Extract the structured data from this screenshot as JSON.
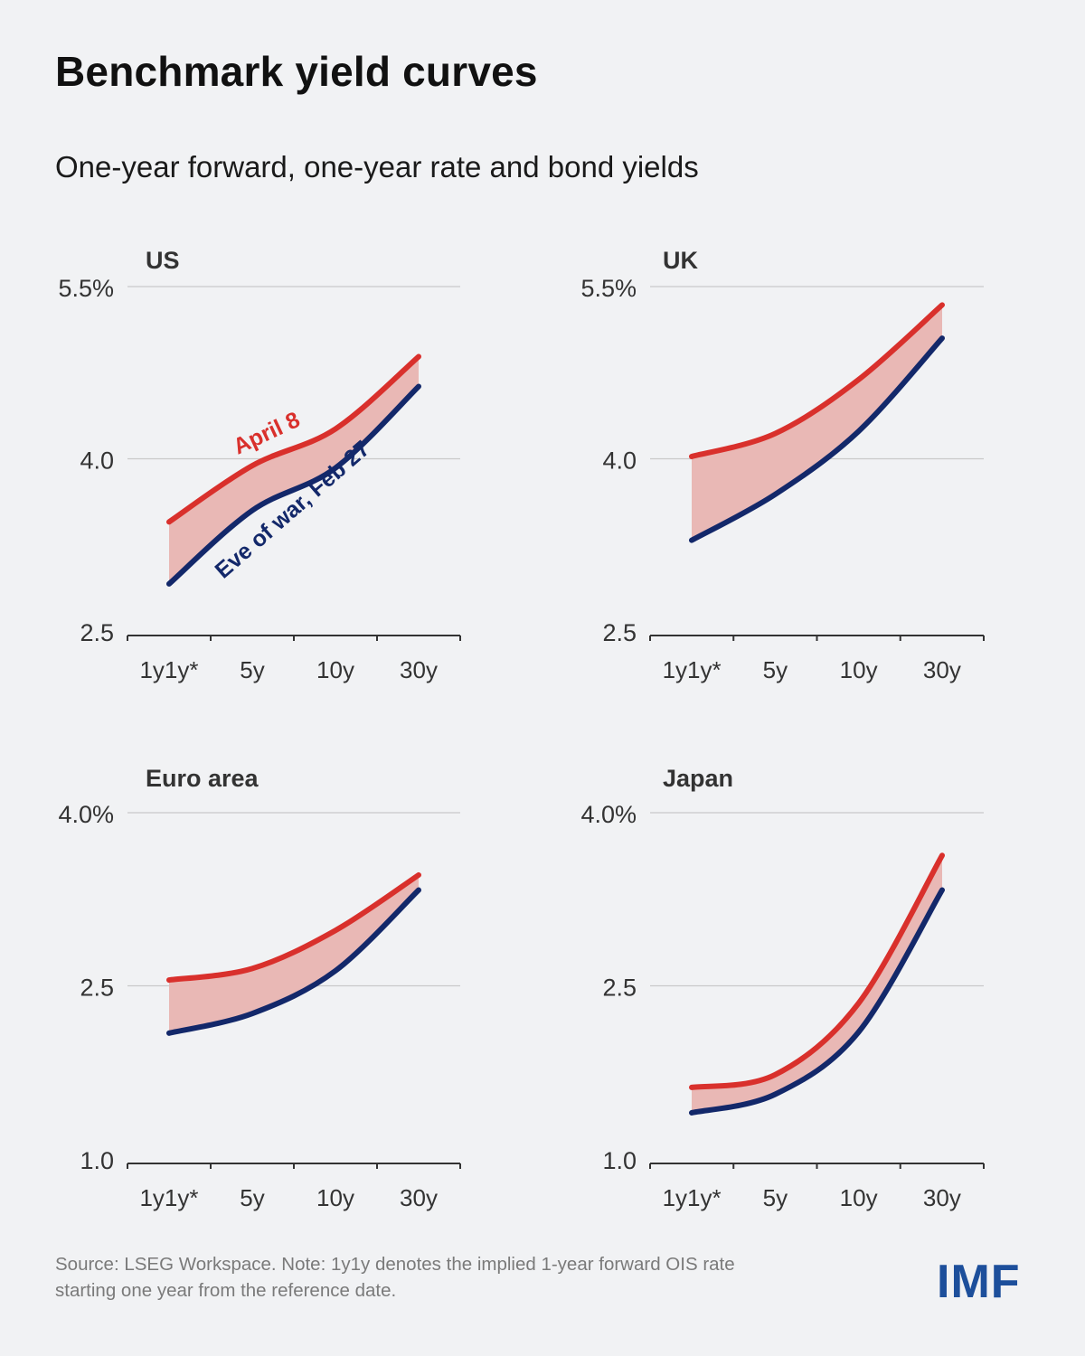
{
  "title": "Benchmark yield curves",
  "subtitle": "One-year forward, one-year rate and bond yields",
  "footer": {
    "source_line1": "Source: LSEG Workspace. Note: 1y1y denotes the implied 1-year forward OIS rate",
    "source_line2": "starting one year from the reference date.",
    "logo": "IMF"
  },
  "colors": {
    "april8": "#d9302c",
    "feb27": "#13286a",
    "band": "#e9b8b5",
    "grid": "#c9c9c9",
    "background": "#f1f2f4"
  },
  "chart_data": [
    {
      "type": "line",
      "title": "US",
      "categories": [
        "1y1y*",
        "5y",
        "10y",
        "30y"
      ],
      "ylim": [
        2.5,
        5.5
      ],
      "yticks": [
        "5.5%",
        "4.0",
        "2.5"
      ],
      "ytick_values": [
        5.5,
        4.0,
        2.5
      ],
      "grid": true,
      "fill_between": true,
      "series": [
        {
          "name": "April 8",
          "values": [
            3.45,
            3.94,
            4.26,
            4.89
          ]
        },
        {
          "name": "Eve of war, Feb 27",
          "values": [
            2.91,
            3.55,
            3.92,
            4.63
          ]
        }
      ]
    },
    {
      "type": "line",
      "title": "UK",
      "categories": [
        "1y1y*",
        "5y",
        "10y",
        "30y"
      ],
      "ylim": [
        2.5,
        5.5
      ],
      "yticks": [
        "5.5%",
        "4.0",
        "2.5"
      ],
      "ytick_values": [
        5.5,
        4.0,
        2.5
      ],
      "grid": true,
      "fill_between": true,
      "series": [
        {
          "values": [
            4.02,
            4.22,
            4.69,
            5.34
          ]
        },
        {
          "values": [
            3.29,
            3.69,
            4.24,
            5.05
          ]
        }
      ]
    },
    {
      "type": "line",
      "title": "Euro area",
      "categories": [
        "1y1y*",
        "5y",
        "10y",
        "30y"
      ],
      "ylim": [
        1.0,
        4.0
      ],
      "yticks": [
        "4.0%",
        "2.5",
        "1.0"
      ],
      "ytick_values": [
        4.0,
        2.5,
        1.0
      ],
      "grid": true,
      "fill_between": true,
      "series": [
        {
          "values": [
            2.55,
            2.65,
            2.98,
            3.46
          ]
        },
        {
          "values": [
            2.09,
            2.26,
            2.63,
            3.33
          ]
        }
      ]
    },
    {
      "type": "line",
      "title": "Japan",
      "categories": [
        "1y1y*",
        "5y",
        "10y",
        "30y"
      ],
      "ylim": [
        1.0,
        4.0
      ],
      "yticks": [
        "4.0%",
        "2.5",
        "1.0"
      ],
      "ytick_values": [
        4.0,
        2.5,
        1.0
      ],
      "grid": true,
      "fill_between": true,
      "series": [
        {
          "values": [
            1.62,
            1.73,
            2.35,
            3.63
          ]
        },
        {
          "values": [
            1.4,
            1.56,
            2.1,
            3.33
          ]
        }
      ]
    }
  ]
}
